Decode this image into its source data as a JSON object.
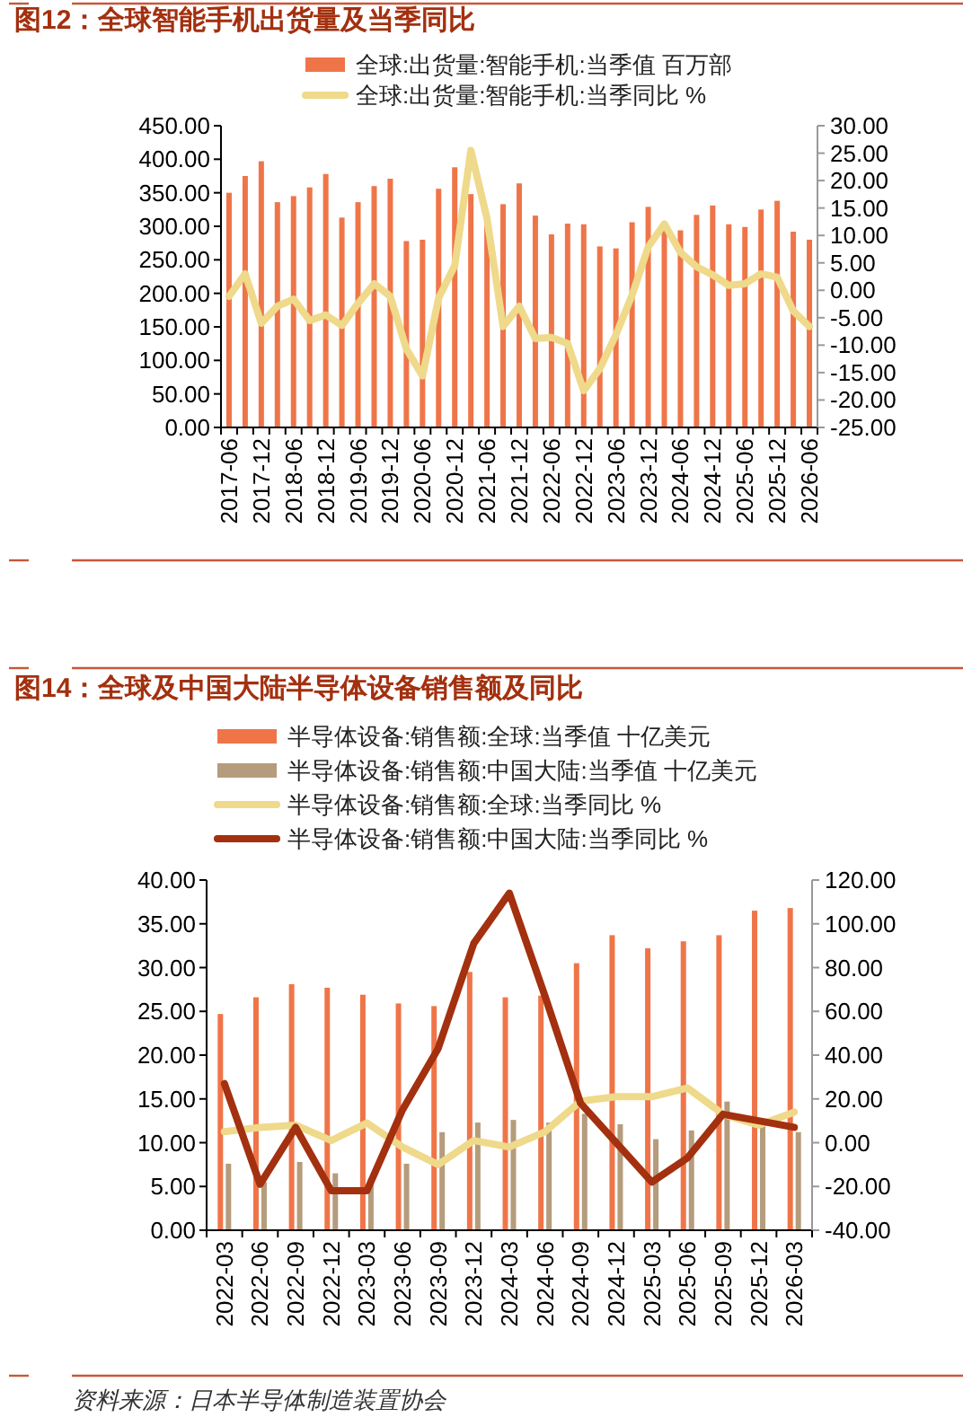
{
  "chart_data": [
    {
      "type": "bar",
      "title": "图12：全球智能手机出货量及当季同比",
      "categories": [
        "2017-06",
        null,
        "2017-12",
        null,
        "2018-06",
        null,
        "2018-12",
        null,
        "2019-06",
        null,
        "2019-12",
        null,
        "2020-06",
        null,
        "2020-12",
        null,
        "2021-06",
        null,
        "2021-12",
        null,
        "2022-06",
        null,
        "2022-12",
        null,
        "2023-06",
        null,
        "2023-12",
        null,
        "2024-06",
        null,
        "2024-12",
        null,
        "2025-06",
        null,
        "2025-12",
        null,
        "2026-06"
      ],
      "series": [
        {
          "name": "全球:出货量:智能手机:当季值 百万部",
          "color": "#ef7549",
          "values": [
            350,
            375,
            397,
            336,
            345,
            358,
            378,
            313,
            336,
            360,
            371,
            278,
            280,
            356,
            388,
            348,
            310,
            333,
            364,
            316,
            288,
            304,
            303,
            270,
            267,
            306,
            329,
            300,
            294,
            317,
            331,
            303,
            299,
            325,
            338,
            292,
            280
          ]
        },
        {
          "name": "全球:出货量:智能手机:当季同比 %",
          "type": "line",
          "axis": "y2",
          "color": "#efd98a",
          "values": [
            -1.1,
            3.0,
            -6.0,
            -2.9,
            -1.6,
            -5.5,
            -4.5,
            -6.4,
            -2.4,
            1.2,
            -1.1,
            -10.7,
            -15.6,
            -1.4,
            4.5,
            25.5,
            13.1,
            -6.6,
            -2.9,
            -8.8,
            -8.6,
            -9.7,
            -18.3,
            -14.3,
            -8.1,
            -0.9,
            7.9,
            12.1,
            6.9,
            4.3,
            2.8,
            0.9,
            1.2,
            3.0,
            2.4,
            -3.8,
            -6.6
          ]
        }
      ],
      "ylim": [
        0,
        450
      ],
      "yticks": [
        {
          "value": 0,
          "label": "0.00"
        },
        {
          "value": 50,
          "label": "50.00"
        },
        {
          "value": 100,
          "label": "100.00"
        },
        {
          "value": 150,
          "label": "150.00"
        },
        {
          "value": 200,
          "label": "200.00"
        },
        {
          "value": 250,
          "label": "250.00"
        },
        {
          "value": 300,
          "label": "300.00"
        },
        {
          "value": 350,
          "label": "350.00"
        },
        {
          "value": 400,
          "label": "400.00"
        },
        {
          "value": 450,
          "label": "450.00"
        }
      ],
      "y2lim": [
        -25,
        30
      ],
      "y2ticks": [
        {
          "value": -25,
          "label": "-25.00"
        },
        {
          "value": -20,
          "label": "-20.00"
        },
        {
          "value": -15,
          "label": "-15.00"
        },
        {
          "value": -10,
          "label": "-10.00"
        },
        {
          "value": -5,
          "label": "-5.00"
        },
        {
          "value": 0,
          "label": "0.00"
        },
        {
          "value": 5,
          "label": "5.00"
        },
        {
          "value": 10,
          "label": "10.00"
        },
        {
          "value": 15,
          "label": "15.00"
        },
        {
          "value": 20,
          "label": "20.00"
        },
        {
          "value": 25,
          "label": "25.00"
        },
        {
          "value": 30,
          "label": "30.00"
        }
      ],
      "legend": "top",
      "grid": false
    },
    {
      "type": "bar",
      "title": "图14：全球及中国大陆半导体设备销售额及同比",
      "categories": [
        "2022-03",
        "2022-06",
        "2022-09",
        "2022-12",
        "2023-03",
        "2023-06",
        "2023-09",
        "2023-12",
        "2024-03",
        "2024-06",
        "2024-09",
        "2024-12",
        "2025-03",
        "2025-06",
        "2025-09",
        "2025-12",
        "2026-03"
      ],
      "series": [
        {
          "name": "半导体设备:销售额:全球:当季值 十亿美元",
          "color": "#ef7549",
          "values": [
            24.7,
            26.6,
            28.1,
            27.7,
            26.9,
            25.9,
            25.6,
            29.5,
            26.6,
            26.8,
            30.5,
            33.7,
            32.2,
            33.0,
            33.7,
            36.5,
            36.8
          ]
        },
        {
          "name": "半导体设备:销售额:中国大陆:当季值 十亿美元",
          "color": "#b49c7c",
          "values": [
            7.6,
            5.5,
            7.8,
            6.5,
            5.9,
            7.6,
            11.2,
            12.3,
            12.6,
            12.3,
            13.3,
            12.1,
            10.4,
            11.4,
            14.7,
            12.0,
            11.2
          ]
        },
        {
          "name": "半导体设备:销售额:全球:当季同比 %",
          "type": "line",
          "axis": "y2",
          "color": "#efd98a",
          "values": [
            5,
            7,
            8,
            1,
            9,
            -2,
            -10,
            1,
            -2,
            5,
            19,
            21,
            21,
            25,
            13,
            8,
            14
          ]
        },
        {
          "name": "半导体设备:销售额:中国大陆:当季同比 %",
          "type": "line",
          "axis": "y2",
          "color": "#a3300f",
          "values": [
            27,
            -19,
            7,
            -22,
            -22,
            15,
            43,
            91,
            114,
            67,
            18,
            0,
            -18,
            -7,
            13,
            10,
            7
          ]
        }
      ],
      "ylim": [
        0,
        40
      ],
      "yticks": [
        {
          "value": 0,
          "label": "0.00"
        },
        {
          "value": 5,
          "label": "5.00"
        },
        {
          "value": 10,
          "label": "10.00"
        },
        {
          "value": 15,
          "label": "15.00"
        },
        {
          "value": 20,
          "label": "20.00"
        },
        {
          "value": 25,
          "label": "25.00"
        },
        {
          "value": 30,
          "label": "30.00"
        },
        {
          "value": 35,
          "label": "35.00"
        },
        {
          "value": 40,
          "label": "40.00"
        }
      ],
      "y2lim": [
        -40,
        120
      ],
      "y2ticks": [
        {
          "value": -40,
          "label": "-40.00"
        },
        {
          "value": -20,
          "label": "-20.00"
        },
        {
          "value": 0,
          "label": "0.00"
        },
        {
          "value": 20,
          "label": "20.00"
        },
        {
          "value": 40,
          "label": "40.00"
        },
        {
          "value": 60,
          "label": "60.00"
        },
        {
          "value": 80,
          "label": "80.00"
        },
        {
          "value": 100,
          "label": "100.00"
        },
        {
          "value": 120,
          "label": "120.00"
        }
      ],
      "legend": "top",
      "grid": false,
      "annotations": [
        "资料来源：日本半导体制造装置协会"
      ]
    }
  ]
}
